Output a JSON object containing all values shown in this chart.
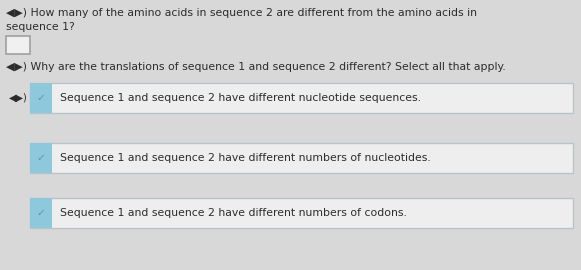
{
  "bg_color": "#d8d8d8",
  "text_color": "#2c2c2c",
  "q1_line1": "◀▶) How many of the amino acids in sequence 2 are different from the amino acids in",
  "q1_line2": "sequence 1?",
  "q2_line": "◀▶) Why are the translations of sequence 1 and sequence 2 different? Select all that apply.",
  "speaker_symbol": "◀▶)",
  "answer_box_fill": "#f0f0f0",
  "answer_box_border": "#a0a0a0",
  "check_tab_color": "#8ec8dc",
  "check_color": "#4a9ab8",
  "option_box_fill": "#eeeeee",
  "option_box_border": "#b8c4cc",
  "option_text_color": "#2c2c2c",
  "options": [
    "Sequence 1 and sequence 2 have different nucleotide sequences.",
    "Sequence 1 and sequence 2 have different numbers of nucleotides.",
    "Sequence 1 and sequence 2 have different numbers of codons."
  ],
  "option_has_speaker": [
    true,
    false,
    false
  ],
  "fig_width": 5.81,
  "fig_height": 2.7,
  "dpi": 100
}
